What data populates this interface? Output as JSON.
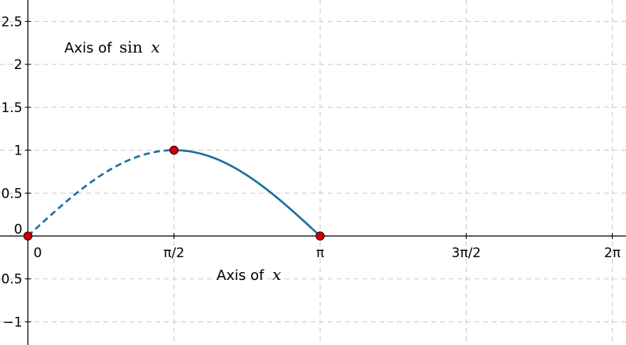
{
  "chart_data": {
    "type": "line",
    "title": "",
    "xlabel": {
      "prefix": "Axis of",
      "math": "x"
    },
    "ylabel": {
      "prefix": "Axis of",
      "math_fn": "sin",
      "math_var": "x"
    },
    "x_ticks": [
      {
        "value": 0,
        "label": "0"
      },
      {
        "value": 1.5708,
        "label": "π/2"
      },
      {
        "value": 3.1416,
        "label": "π"
      },
      {
        "value": 4.7124,
        "label": "3π/2"
      },
      {
        "value": 6.2832,
        "label": "2π"
      }
    ],
    "y_ticks": [
      {
        "value": -1,
        "label": "−1"
      },
      {
        "value": -0.5,
        "label": "−0.5"
      },
      {
        "value": 0,
        "label": "0"
      },
      {
        "value": 0.5,
        "label": "0.5"
      },
      {
        "value": 1,
        "label": "1"
      },
      {
        "value": 1.5,
        "label": "1.5"
      },
      {
        "value": 2,
        "label": "2"
      },
      {
        "value": 2.5,
        "label": "2.5"
      }
    ],
    "xlim": [
      -0.3,
      6.43
    ],
    "ylim": [
      -1.27,
      2.75
    ],
    "grid": true,
    "series": [
      {
        "function": "sin",
        "x_from": 0,
        "x_to": 1.5708,
        "style": "dashed",
        "color": "#1a6fa0"
      },
      {
        "function": "sin",
        "x_from": 1.5708,
        "x_to": 3.1416,
        "style": "solid",
        "color": "#1a6fa0"
      }
    ],
    "points": [
      {
        "x": 0,
        "y": 0
      },
      {
        "x": 1.5708,
        "y": 1
      },
      {
        "x": 3.1416,
        "y": 0
      }
    ],
    "point_color": "#cc0000",
    "grid_color": "#c8c8c8"
  }
}
